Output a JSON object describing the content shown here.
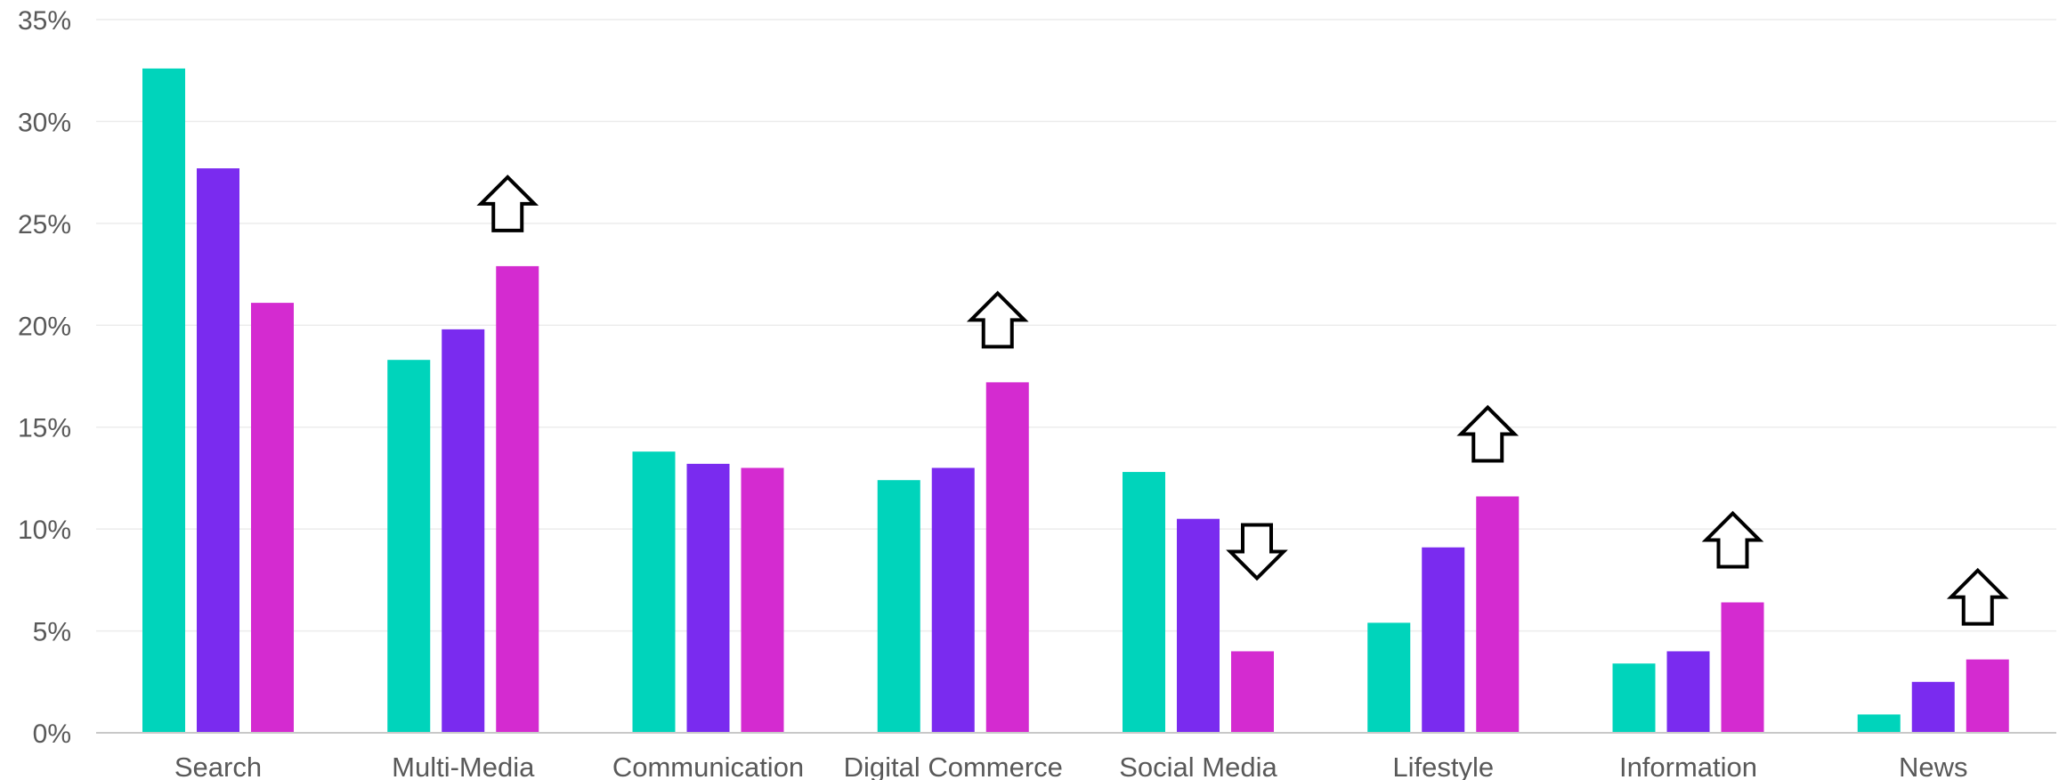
{
  "chart_data": {
    "type": "bar",
    "title": "",
    "xlabel": "",
    "ylabel": "",
    "ylim": [
      0,
      35
    ],
    "y_ticks": [
      "0%",
      "5%",
      "10%",
      "15%",
      "20%",
      "25%",
      "30%",
      "35%"
    ],
    "y_tick_values": [
      0,
      5,
      10,
      15,
      20,
      25,
      30,
      35
    ],
    "grid": true,
    "legend": "none",
    "categories": [
      "Search",
      "Multi-Media",
      "Communication",
      "Digital Commerce",
      "Social Media",
      "Lifestyle",
      "Information",
      "News"
    ],
    "series": [
      {
        "color": "#00d4bb",
        "values": [
          32.6,
          18.3,
          13.8,
          12.4,
          12.8,
          5.4,
          3.4,
          0.9
        ]
      },
      {
        "color": "#7a2bef",
        "values": [
          27.7,
          19.8,
          13.2,
          13.0,
          10.5,
          9.1,
          4.0,
          2.5
        ]
      },
      {
        "color": "#d42bd0",
        "values": [
          21.1,
          22.9,
          13.0,
          17.2,
          4.0,
          11.6,
          6.4,
          3.6
        ]
      }
    ],
    "trend_arrows": [
      "none",
      "up",
      "none",
      "up",
      "down",
      "up",
      "up",
      "up"
    ]
  }
}
